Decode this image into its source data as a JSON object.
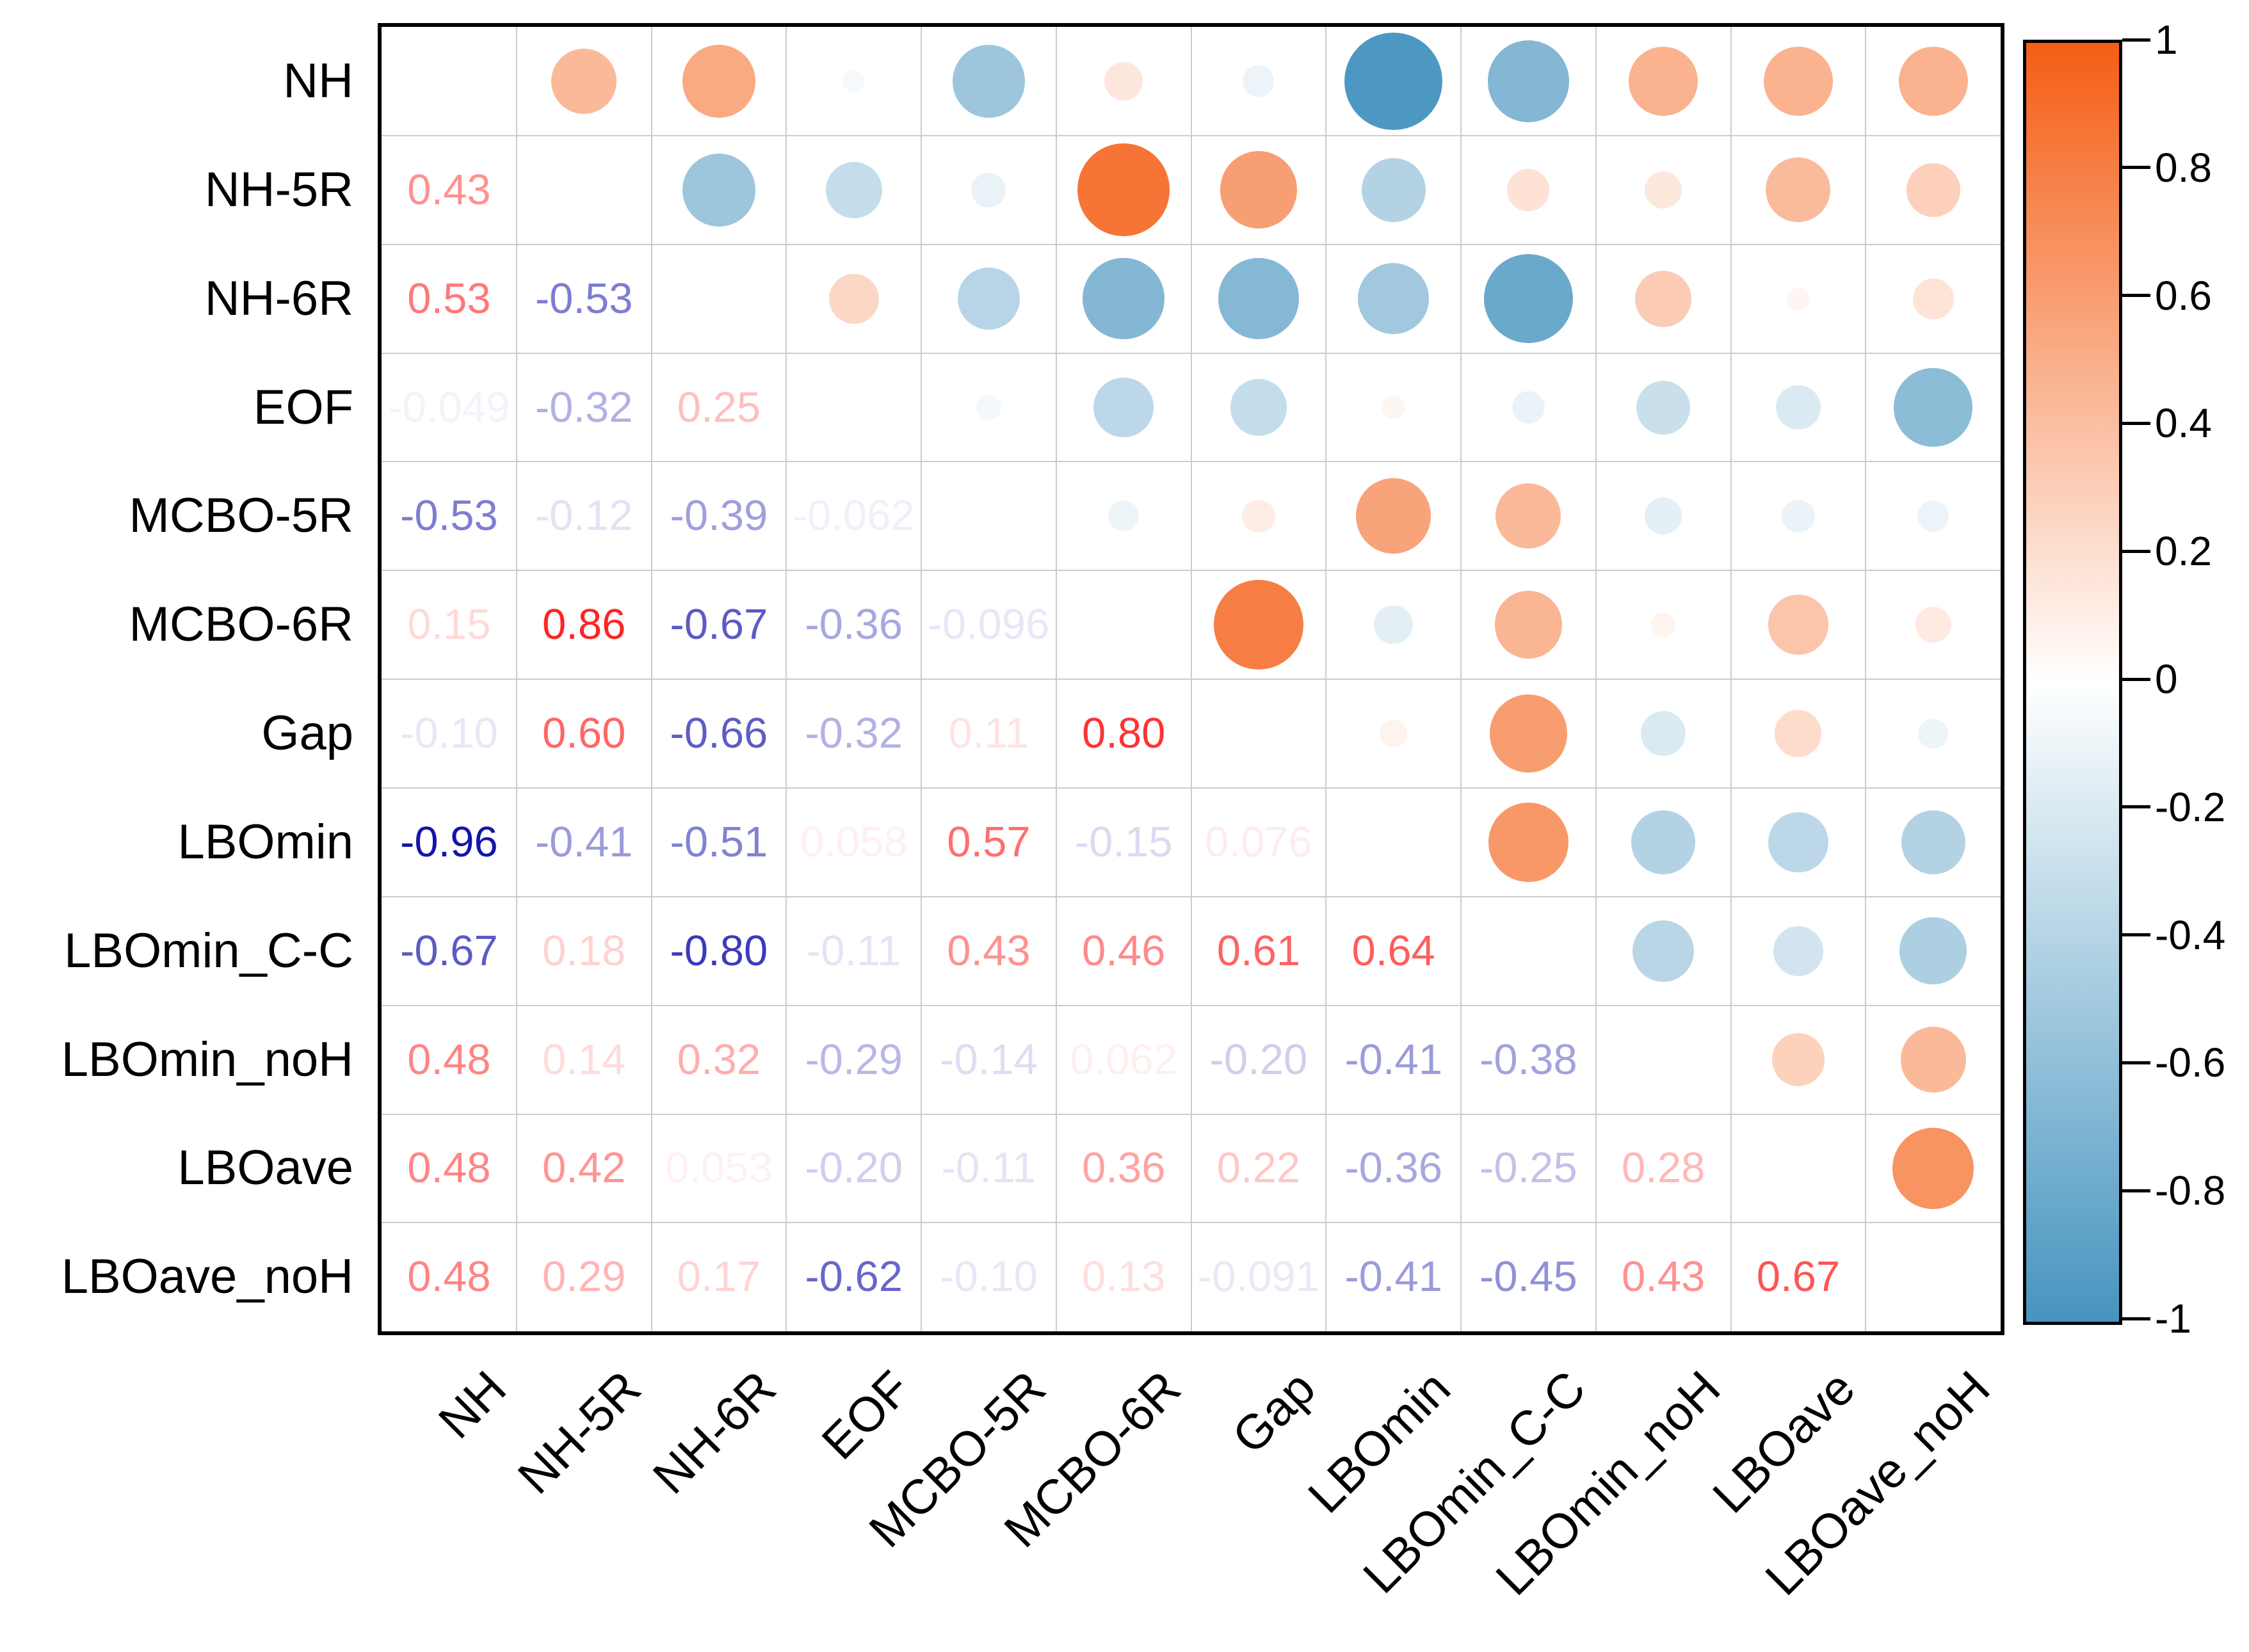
{
  "chart_data": {
    "type": "heatmap",
    "subtype": "correlation-matrix-mixed",
    "title": "",
    "variables": [
      "NH",
      "NH-5R",
      "NH-6R",
      "EOF",
      "MCBO-5R",
      "MCBO-6R",
      "Gap",
      "LBOmin",
      "LBOmin_C-C",
      "LBOmin_noH",
      "LBOave",
      "LBOave_noH"
    ],
    "lower_triangle_display": "numbers",
    "upper_triangle_display": "circles (area proportional to |r|, color from colorbar scale)",
    "diagonal_display": "blank",
    "lower_triangle_values": [
      [],
      [
        "0.43"
      ],
      [
        "0.53",
        "-0.53"
      ],
      [
        "-0.049",
        "-0.32",
        "0.25"
      ],
      [
        "-0.53",
        "-0.12",
        "-0.39",
        "-0.062"
      ],
      [
        "0.15",
        "0.86",
        "-0.67",
        "-0.36",
        "-0.096"
      ],
      [
        "-0.10",
        "0.60",
        "-0.66",
        "-0.32",
        "0.11",
        "0.80"
      ],
      [
        "-0.96",
        "-0.41",
        "-0.51",
        "0.058",
        "0.57",
        "-0.15",
        "0.076"
      ],
      [
        "-0.67",
        "0.18",
        "-0.80",
        "-0.11",
        "0.43",
        "0.46",
        "0.61",
        "0.64"
      ],
      [
        "0.48",
        "0.14",
        "0.32",
        "-0.29",
        "-0.14",
        "0.062",
        "-0.20",
        "-0.41",
        "-0.38"
      ],
      [
        "0.48",
        "0.42",
        "0.053",
        "-0.20",
        "-0.11",
        "0.36",
        "0.22",
        "-0.36",
        "-0.25",
        "0.28"
      ],
      [
        "0.48",
        "0.29",
        "0.17",
        "-0.62",
        "-0.10",
        "0.13",
        "-0.091",
        "-0.41",
        "-0.45",
        "0.43",
        "0.67"
      ]
    ],
    "colorbar": {
      "tick_labels": [
        "1",
        "0.8",
        "0.6",
        "0.4",
        "0.2",
        "0",
        "-0.2",
        "-0.4",
        "-0.6",
        "-0.8",
        "-1"
      ],
      "range": [
        1,
        -1
      ],
      "max_color": "#f45e15",
      "mid_color": "#ffffff",
      "min_color": "#4694bf"
    },
    "number_color_scale": {
      "positive_end": "#ff0000",
      "negative_end": "#0a0aa8",
      "zero": "#ffffff"
    },
    "grid_color": "#cccccc",
    "border_color": "#000000",
    "legend_position": "right"
  }
}
